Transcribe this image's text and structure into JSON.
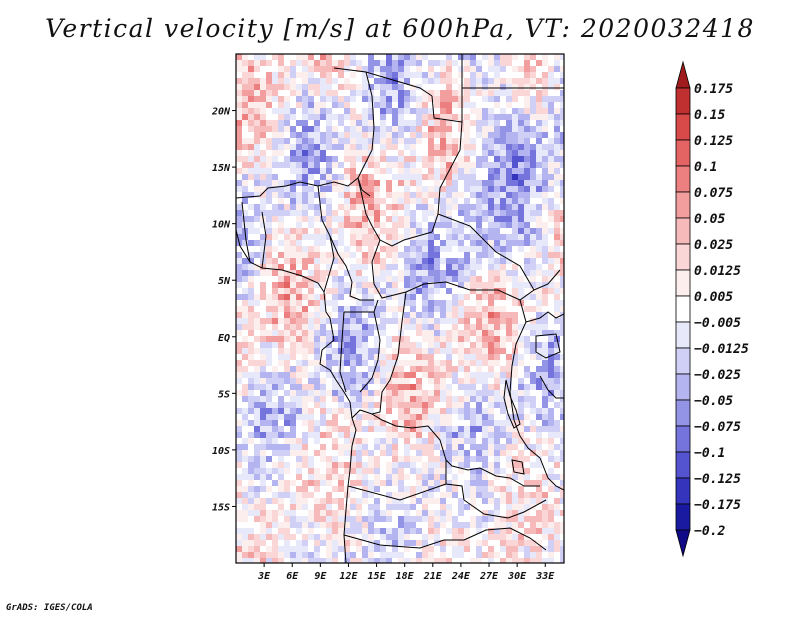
{
  "title": "Vertical velocity [m/s] at 600hPa, VT: 2020032418",
  "credit": "GrADS: IGES/COLA",
  "map": {
    "variable": "Vertical velocity",
    "units": "m/s",
    "level": "600hPa",
    "valid_time": "2020032418",
    "lon_range": [
      0,
      35
    ],
    "lat_range": [
      -20,
      25
    ],
    "x_ticks": [
      "3E",
      "6E",
      "9E",
      "12E",
      "15E",
      "18E",
      "21E",
      "24E",
      "27E",
      "30E",
      "33E"
    ],
    "x_tick_values": [
      3,
      6,
      9,
      12,
      15,
      18,
      21,
      24,
      27,
      30,
      33
    ],
    "y_ticks": [
      "20N",
      "15N",
      "10N",
      "5N",
      "EQ",
      "5S",
      "10S",
      "15S"
    ],
    "y_tick_values": [
      20,
      15,
      10,
      5,
      0,
      -5,
      -10,
      -15
    ]
  },
  "colorbar": {
    "labels": [
      "0.175",
      "0.15",
      "0.125",
      "0.1",
      "0.075",
      "0.05",
      "0.025",
      "0.0125",
      "0.005",
      "−0.005",
      "−0.0125",
      "−0.025",
      "−0.05",
      "−0.075",
      "−0.1",
      "−0.125",
      "−0.175",
      "−0.2"
    ],
    "colors": [
      "#a01c1c",
      "#c03030",
      "#d84a4a",
      "#e46464",
      "#ec8080",
      "#f29e9e",
      "#f6baba",
      "#fad6d6",
      "#fdeeee",
      "#ffffff",
      "#e8e8fb",
      "#d0d0f6",
      "#b4b4f0",
      "#9494e6",
      "#7474dc",
      "#5454d0",
      "#3434bc",
      "#1a1aa0",
      "#100a86"
    ]
  }
}
